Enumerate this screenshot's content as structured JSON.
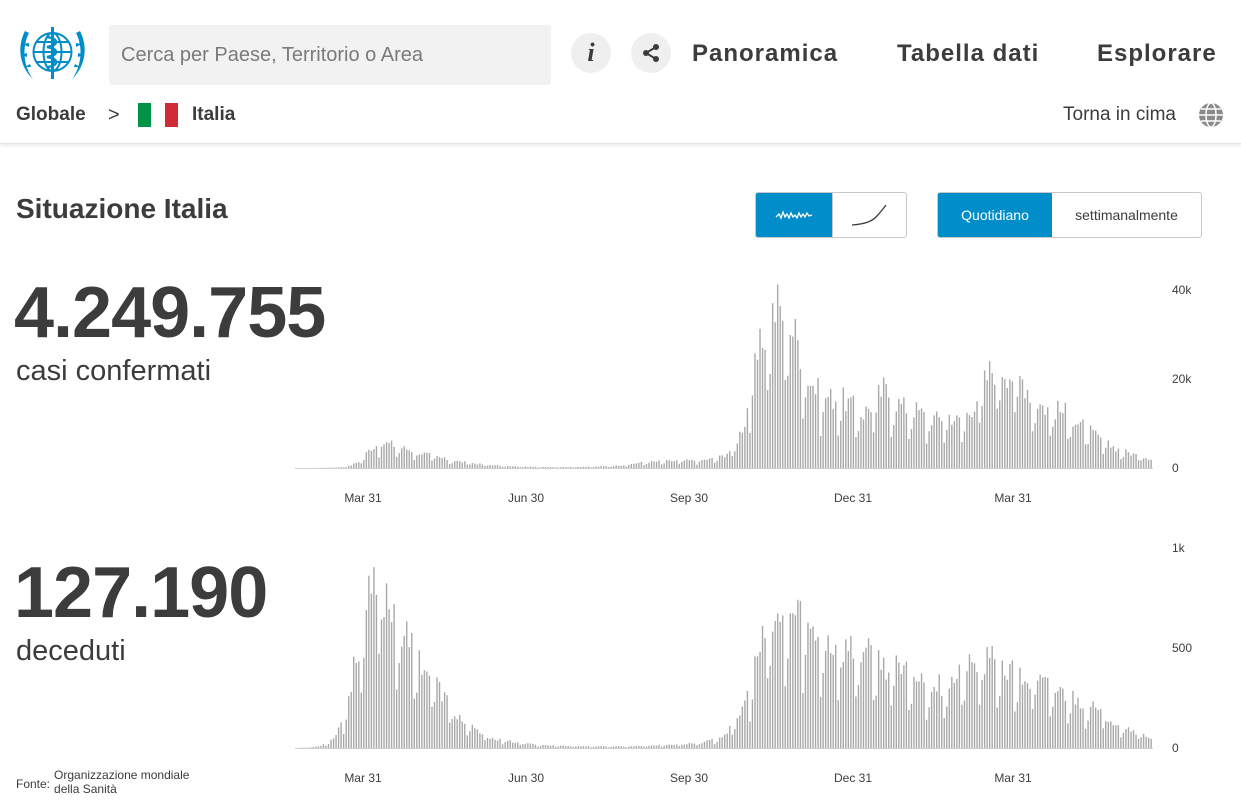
{
  "header": {
    "search_placeholder": "Cerca per Paese, Territorio o Area",
    "info_icon": "info-icon",
    "share_icon": "share-icon",
    "nav": [
      "Panoramica",
      "Tabella dati",
      "Esplorare"
    ]
  },
  "breadcrumb": {
    "root": "Globale",
    "separator": ">",
    "country": "Italia",
    "flag_colors": [
      "#009246",
      "#ffffff",
      "#ce2b37"
    ],
    "back_to_top": "Torna in cima"
  },
  "main": {
    "title": "Situazione Italia",
    "chart_mode_icons": [
      "daily-wave-icon",
      "cumulative-curve-icon"
    ],
    "period_options": [
      "Quotidiano",
      "settimanalmente"
    ],
    "selected_period": "Quotidiano",
    "accent_color": "#008dc9",
    "bar_color": "#a8a8a8"
  },
  "cases": {
    "total": "4.249.755",
    "label": "casi confermati"
  },
  "deaths": {
    "total": "127.190",
    "label": "deceduti"
  },
  "source": {
    "prefix": "Fonte:",
    "org_line1": "Organizzazione mondiale",
    "org_line2": "della Sanità"
  },
  "chart_data": [
    {
      "type": "bar",
      "series": [
        {
          "name": "casi confermati",
          "weekly_avg_values": [
            5,
            10,
            20,
            60,
            120,
            400,
            1500,
            4200,
            5400,
            5100,
            4300,
            3700,
            3100,
            2500,
            1900,
            1500,
            1200,
            900,
            700,
            500,
            350,
            300,
            250,
            230,
            220,
            200,
            220,
            260,
            300,
            400,
            500,
            700,
            1100,
            1300,
            1400,
            1500,
            1600,
            1600,
            1700,
            2000,
            2600,
            4500,
            10000,
            22000,
            30000,
            35000,
            32000,
            27000,
            19000,
            16000,
            15000,
            15000,
            13500,
            11500,
            14000,
            17000,
            14500,
            13000,
            12500,
            11000,
            10500,
            11500,
            10000,
            12000,
            16500,
            21000,
            22000,
            20000,
            19000,
            15000,
            13000,
            12500,
            12000,
            10000,
            8500,
            6500,
            5000,
            4000,
            3200,
            2600,
            2000
          ]
        }
      ],
      "x_tick_labels": [
        "Mar 31",
        "Jun 30",
        "Sep 30",
        "Dec 31",
        "Mar 31"
      ],
      "y_tick_labels": [
        "40k",
        "20k",
        "0"
      ],
      "ylim": [
        0,
        40000
      ],
      "grid": false
    },
    {
      "type": "bar",
      "series": [
        {
          "name": "deceduti",
          "weekly_avg_values": [
            0,
            2,
            10,
            40,
            150,
            450,
            700,
            780,
            650,
            520,
            440,
            350,
            260,
            170,
            110,
            75,
            50,
            35,
            28,
            20,
            15,
            12,
            10,
            9,
            8,
            8,
            8,
            8,
            10,
            12,
            14,
            17,
            20,
            25,
            35,
            60,
            120,
            250,
            480,
            580,
            600,
            650,
            560,
            520,
            500,
            480,
            460,
            440,
            400,
            380,
            350,
            330,
            300,
            300,
            330,
            380,
            400,
            420,
            380,
            340,
            320,
            310,
            280,
            260,
            230,
            200,
            160,
            130,
            100,
            70,
            50
          ]
        }
      ],
      "x_tick_labels": [
        "Mar 31",
        "Jun 30",
        "Sep 30",
        "Dec 31",
        "Mar 31"
      ],
      "y_tick_labels": [
        "1k",
        "500",
        "0"
      ],
      "ylim": [
        0,
        1000
      ],
      "grid": false
    }
  ]
}
